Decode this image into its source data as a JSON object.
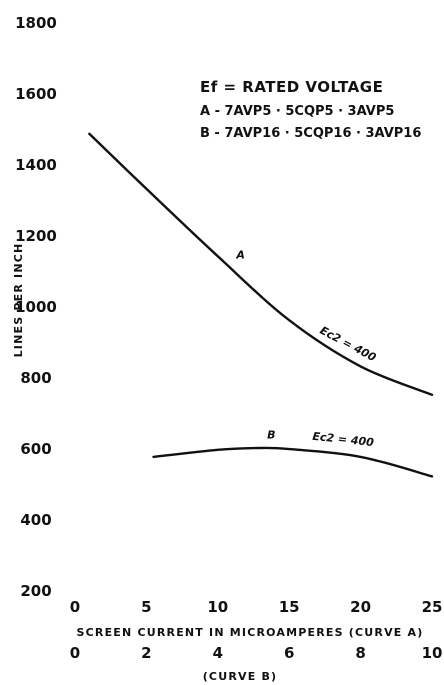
{
  "chart_data": {
    "type": "line",
    "title": "",
    "legend": {
      "title": "Ef = RATED VOLTAGE",
      "lines": [
        "A - 7AVP5 · 5CQP5 · 3AVP5",
        "B - 7AVP16 · 5CQP16 · 3AVP16"
      ]
    },
    "ylabel": "LINES PER INCH",
    "ylim": [
      200,
      1800
    ],
    "yticks": [
      200,
      400,
      600,
      800,
      1000,
      1200,
      1400,
      1600,
      1800
    ],
    "xlabel_a": "SCREEN CURRENT IN MICROAMPERES (CURVE A)",
    "xlim_a": [
      0,
      25
    ],
    "xticks_a": [
      0,
      5,
      10,
      15,
      20,
      25
    ],
    "xlabel_b": "(CURVE B)",
    "xlim_b": [
      0,
      10
    ],
    "xticks_b": [
      0,
      2,
      4,
      6,
      8,
      10
    ],
    "grid": false,
    "legend_placement": "top-right",
    "series": [
      {
        "name": "A",
        "annotation": "Ec2 = 400",
        "x_axis": "a",
        "x": [
          1,
          5,
          10,
          15,
          20,
          25
        ],
        "y": [
          1485,
          1330,
          1140,
          960,
          830,
          750
        ]
      },
      {
        "name": "B",
        "annotation": "Ec2 = 400",
        "x_axis": "b",
        "x": [
          2.2,
          4,
          5.2,
          6,
          8,
          10
        ],
        "y": [
          575,
          595,
          600,
          597,
          575,
          520
        ]
      }
    ]
  }
}
